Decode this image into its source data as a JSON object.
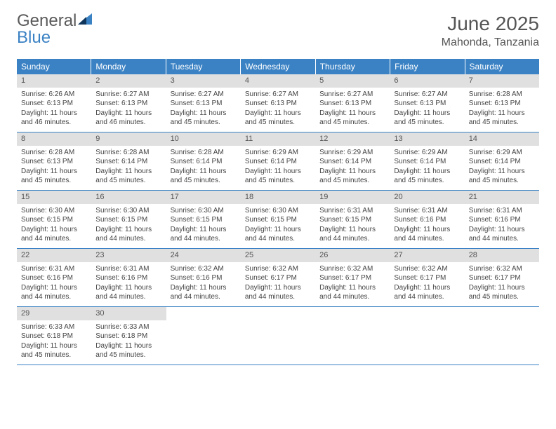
{
  "logo": {
    "word1": "General",
    "word2": "Blue"
  },
  "title": "June 2025",
  "location": "Mahonda, Tanzania",
  "weekdays": [
    "Sunday",
    "Monday",
    "Tuesday",
    "Wednesday",
    "Thursday",
    "Friday",
    "Saturday"
  ],
  "colors": {
    "header_bg": "#3b82c4",
    "header_text": "#ffffff",
    "day_num_bg": "#e0e0e0",
    "row_border": "#3b82c4",
    "text": "#444444",
    "title_text": "#555555"
  },
  "days": [
    {
      "n": 1,
      "sunrise": "6:26 AM",
      "sunset": "6:13 PM",
      "daylight": "11 hours and 46 minutes."
    },
    {
      "n": 2,
      "sunrise": "6:27 AM",
      "sunset": "6:13 PM",
      "daylight": "11 hours and 46 minutes."
    },
    {
      "n": 3,
      "sunrise": "6:27 AM",
      "sunset": "6:13 PM",
      "daylight": "11 hours and 45 minutes."
    },
    {
      "n": 4,
      "sunrise": "6:27 AM",
      "sunset": "6:13 PM",
      "daylight": "11 hours and 45 minutes."
    },
    {
      "n": 5,
      "sunrise": "6:27 AM",
      "sunset": "6:13 PM",
      "daylight": "11 hours and 45 minutes."
    },
    {
      "n": 6,
      "sunrise": "6:27 AM",
      "sunset": "6:13 PM",
      "daylight": "11 hours and 45 minutes."
    },
    {
      "n": 7,
      "sunrise": "6:28 AM",
      "sunset": "6:13 PM",
      "daylight": "11 hours and 45 minutes."
    },
    {
      "n": 8,
      "sunrise": "6:28 AM",
      "sunset": "6:13 PM",
      "daylight": "11 hours and 45 minutes."
    },
    {
      "n": 9,
      "sunrise": "6:28 AM",
      "sunset": "6:14 PM",
      "daylight": "11 hours and 45 minutes."
    },
    {
      "n": 10,
      "sunrise": "6:28 AM",
      "sunset": "6:14 PM",
      "daylight": "11 hours and 45 minutes."
    },
    {
      "n": 11,
      "sunrise": "6:29 AM",
      "sunset": "6:14 PM",
      "daylight": "11 hours and 45 minutes."
    },
    {
      "n": 12,
      "sunrise": "6:29 AM",
      "sunset": "6:14 PM",
      "daylight": "11 hours and 45 minutes."
    },
    {
      "n": 13,
      "sunrise": "6:29 AM",
      "sunset": "6:14 PM",
      "daylight": "11 hours and 45 minutes."
    },
    {
      "n": 14,
      "sunrise": "6:29 AM",
      "sunset": "6:14 PM",
      "daylight": "11 hours and 45 minutes."
    },
    {
      "n": 15,
      "sunrise": "6:30 AM",
      "sunset": "6:15 PM",
      "daylight": "11 hours and 44 minutes."
    },
    {
      "n": 16,
      "sunrise": "6:30 AM",
      "sunset": "6:15 PM",
      "daylight": "11 hours and 44 minutes."
    },
    {
      "n": 17,
      "sunrise": "6:30 AM",
      "sunset": "6:15 PM",
      "daylight": "11 hours and 44 minutes."
    },
    {
      "n": 18,
      "sunrise": "6:30 AM",
      "sunset": "6:15 PM",
      "daylight": "11 hours and 44 minutes."
    },
    {
      "n": 19,
      "sunrise": "6:31 AM",
      "sunset": "6:15 PM",
      "daylight": "11 hours and 44 minutes."
    },
    {
      "n": 20,
      "sunrise": "6:31 AM",
      "sunset": "6:16 PM",
      "daylight": "11 hours and 44 minutes."
    },
    {
      "n": 21,
      "sunrise": "6:31 AM",
      "sunset": "6:16 PM",
      "daylight": "11 hours and 44 minutes."
    },
    {
      "n": 22,
      "sunrise": "6:31 AM",
      "sunset": "6:16 PM",
      "daylight": "11 hours and 44 minutes."
    },
    {
      "n": 23,
      "sunrise": "6:31 AM",
      "sunset": "6:16 PM",
      "daylight": "11 hours and 44 minutes."
    },
    {
      "n": 24,
      "sunrise": "6:32 AM",
      "sunset": "6:16 PM",
      "daylight": "11 hours and 44 minutes."
    },
    {
      "n": 25,
      "sunrise": "6:32 AM",
      "sunset": "6:17 PM",
      "daylight": "11 hours and 44 minutes."
    },
    {
      "n": 26,
      "sunrise": "6:32 AM",
      "sunset": "6:17 PM",
      "daylight": "11 hours and 44 minutes."
    },
    {
      "n": 27,
      "sunrise": "6:32 AM",
      "sunset": "6:17 PM",
      "daylight": "11 hours and 44 minutes."
    },
    {
      "n": 28,
      "sunrise": "6:32 AM",
      "sunset": "6:17 PM",
      "daylight": "11 hours and 45 minutes."
    },
    {
      "n": 29,
      "sunrise": "6:33 AM",
      "sunset": "6:18 PM",
      "daylight": "11 hours and 45 minutes."
    },
    {
      "n": 30,
      "sunrise": "6:33 AM",
      "sunset": "6:18 PM",
      "daylight": "11 hours and 45 minutes."
    }
  ],
  "labels": {
    "sunrise": "Sunrise:",
    "sunset": "Sunset:",
    "daylight": "Daylight:"
  },
  "layout": {
    "first_weekday_index": 0,
    "total_cells": 35
  }
}
